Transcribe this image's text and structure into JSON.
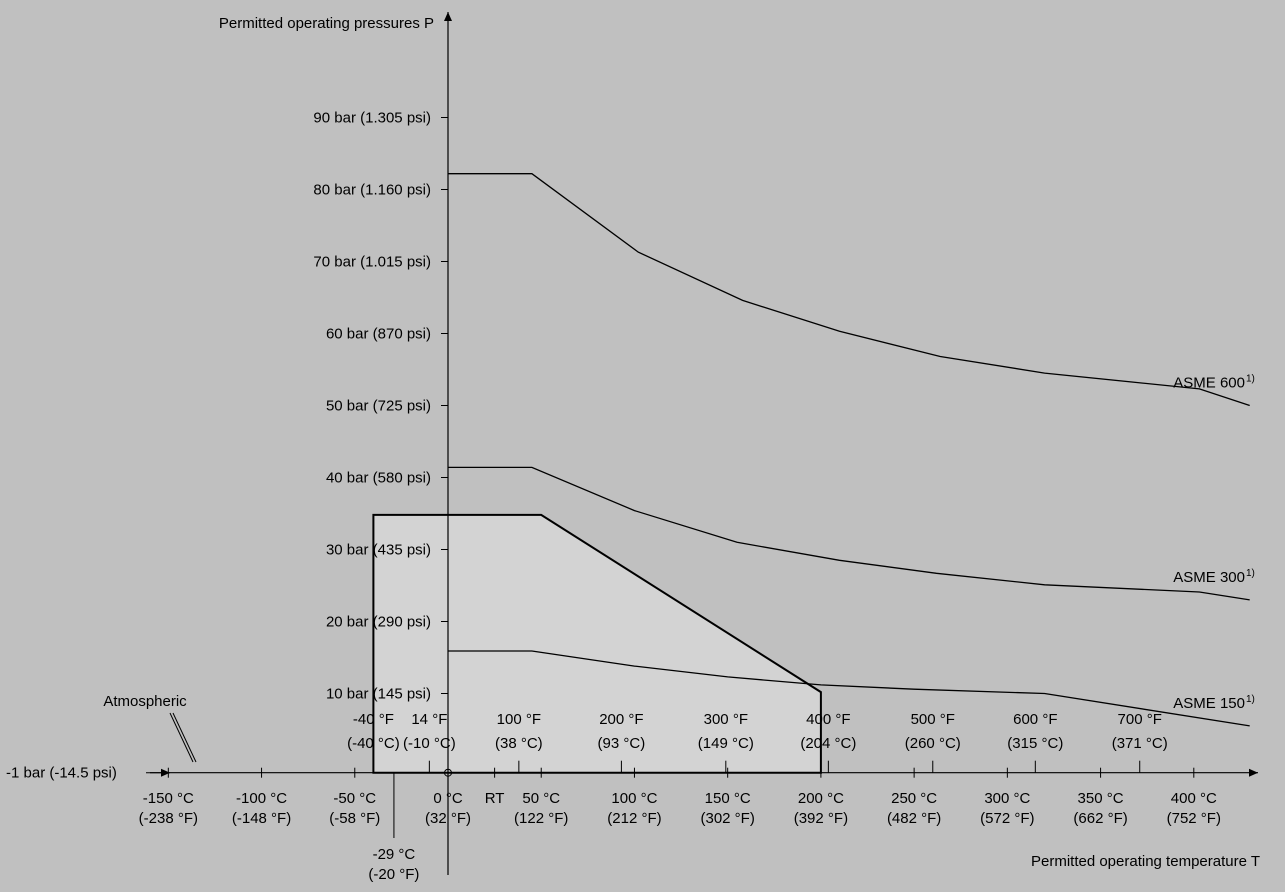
{
  "chart_data": {
    "type": "line",
    "ylabel": "Permitted operating pressures P",
    "xlabel": "Permitted operating temperature T",
    "x_unit": "°C",
    "y_unit": "bar",
    "xlim": [
      -160,
      430
    ],
    "ylim": [
      -1,
      95
    ],
    "y_ticks": [
      {
        "value": 10,
        "label": "10 bar (145 psi)"
      },
      {
        "value": 20,
        "label": "20 bar (290 psi)"
      },
      {
        "value": 30,
        "label": "30 bar (435 psi)"
      },
      {
        "value": 40,
        "label": "40 bar (580 psi)"
      },
      {
        "value": 50,
        "label": "50 bar (725 psi)"
      },
      {
        "value": 60,
        "label": "60 bar (870 psi)"
      },
      {
        "value": 70,
        "label": "70 bar (1.015 psi)"
      },
      {
        "value": 80,
        "label": "80 bar (1.160 psi)"
      },
      {
        "value": 90,
        "label": "90 bar (1.305 psi)"
      }
    ],
    "y_bottom_label": "-1 bar (-14.5 psi)",
    "atmospheric_label": "Atmospheric",
    "x_ticks_celsius": [
      {
        "value": -150,
        "line1": "-150 °C",
        "line2": "(-238 °F)"
      },
      {
        "value": -100,
        "line1": "-100 °C",
        "line2": "(-148 °F)"
      },
      {
        "value": -50,
        "line1": "-50 °C",
        "line2": "(-58 °F)"
      },
      {
        "value": 0,
        "line1": "0 °C",
        "line2": "(32 °F)"
      },
      {
        "value": 50,
        "line1": "50 °C",
        "line2": "(122 °F)"
      },
      {
        "value": 100,
        "line1": "100 °C",
        "line2": "(212 °F)"
      },
      {
        "value": 150,
        "line1": "150 °C",
        "line2": "(302 °F)"
      },
      {
        "value": 200,
        "line1": "200 °C",
        "line2": "(392 °F)"
      },
      {
        "value": 250,
        "line1": "250 °C",
        "line2": "(482 °F)"
      },
      {
        "value": 300,
        "line1": "300 °C",
        "line2": "(572 °F)"
      },
      {
        "value": 350,
        "line1": "350 °C",
        "line2": "(662 °F)"
      },
      {
        "value": 400,
        "line1": "400 °C",
        "line2": "(752 °F)"
      }
    ],
    "x_ticks_fahrenheit": [
      {
        "value": -40,
        "line1": "-40 °F",
        "line2": "(-40 °C)"
      },
      {
        "value": -10,
        "line1": "14 °F",
        "line2": "(-10 °C)"
      },
      {
        "value": 38,
        "line1": "100 °F",
        "line2": "(38 °C)"
      },
      {
        "value": 93,
        "line1": "200 °F",
        "line2": "(93 °C)"
      },
      {
        "value": 149,
        "line1": "300 °F",
        "line2": "(149 °C)"
      },
      {
        "value": 204,
        "line1": "400 °F",
        "line2": "(204 °C)"
      },
      {
        "value": 260,
        "line1": "500 °F",
        "line2": "(260 °C)"
      },
      {
        "value": 315,
        "line1": "600 °F",
        "line2": "(315 °C)"
      },
      {
        "value": 371,
        "line1": "700 °F",
        "line2": "(371 °C)"
      }
    ],
    "rt_label": {
      "value": 25,
      "label": "RT"
    },
    "annotation_low": {
      "value": -29,
      "line1": "-29 °C",
      "line2": "(-20 °F)"
    },
    "series": [
      {
        "name": "ASME 600",
        "footnote": "1)",
        "x": [
          0,
          45,
          102,
          158,
          210,
          264,
          320,
          403,
          430
        ],
        "y": [
          82.2,
          82.2,
          71.3,
          64.6,
          60.3,
          56.8,
          54.5,
          52.3,
          50.0
        ]
      },
      {
        "name": "ASME 300",
        "footnote": "1)",
        "x": [
          0,
          45,
          100,
          155,
          210,
          262,
          320,
          403,
          430
        ],
        "y": [
          41.4,
          41.4,
          35.4,
          31.0,
          28.5,
          26.7,
          25.1,
          24.1,
          23.0
        ]
      },
      {
        "name": "ASME 150",
        "footnote": "1)",
        "x": [
          0,
          45,
          100,
          150,
          200,
          250,
          320,
          430
        ],
        "y": [
          15.9,
          15.9,
          13.8,
          12.3,
          11.2,
          10.6,
          10.0,
          5.5
        ]
      }
    ],
    "region": {
      "fill": "#d3d3d3",
      "x": [
        -40,
        -40,
        50,
        200,
        200
      ],
      "y": [
        -1,
        34.8,
        34.8,
        10.2,
        -1
      ]
    }
  }
}
